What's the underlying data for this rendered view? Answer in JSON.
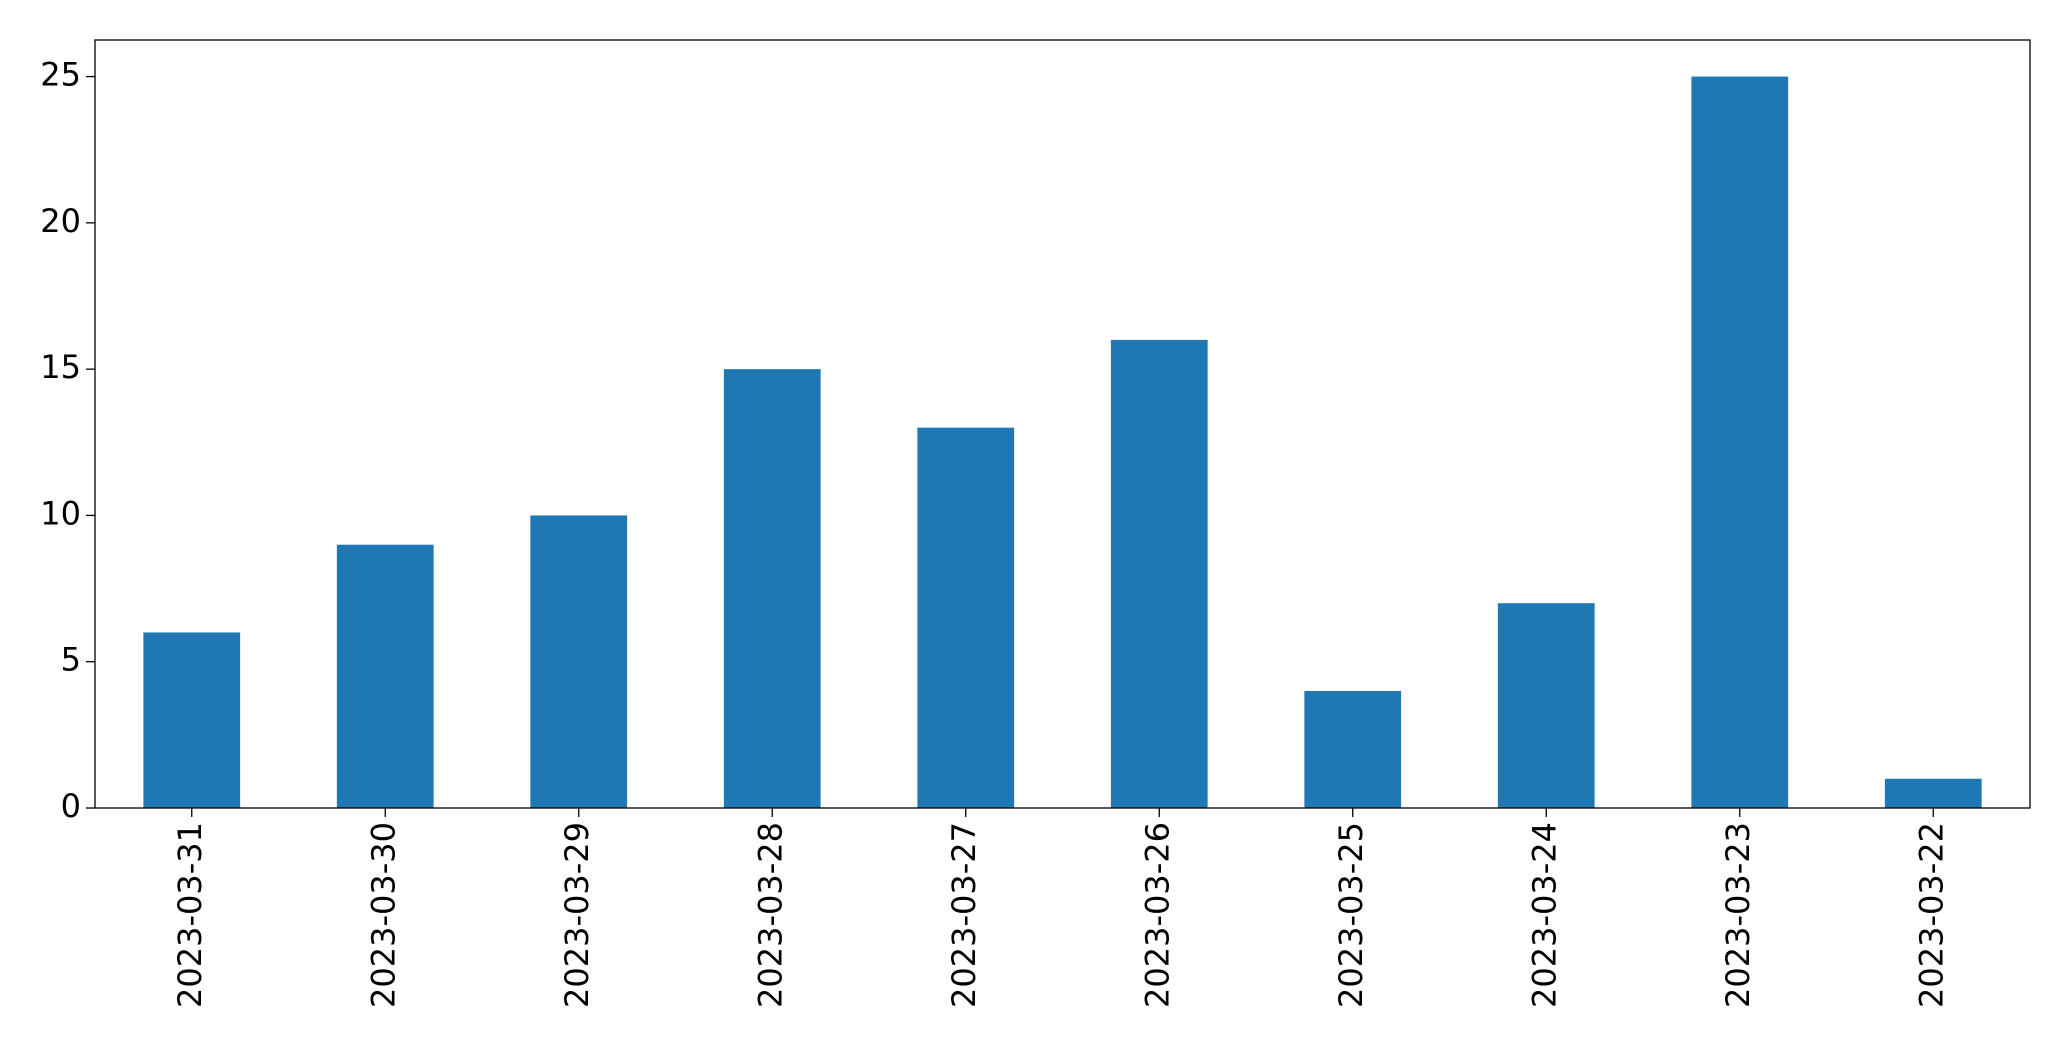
{
  "chart_data": {
    "type": "bar",
    "categories": [
      "2023-03-31",
      "2023-03-30",
      "2023-03-29",
      "2023-03-28",
      "2023-03-27",
      "2023-03-26",
      "2023-03-25",
      "2023-03-24",
      "2023-03-23",
      "2023-03-22"
    ],
    "values": [
      6,
      9,
      10,
      15,
      13,
      16,
      4,
      7,
      25,
      1
    ],
    "color": "#1f77b4",
    "ylim": [
      0,
      26.25
    ],
    "yticks": [
      0,
      5,
      10,
      15,
      20,
      25
    ],
    "grid": false
  }
}
